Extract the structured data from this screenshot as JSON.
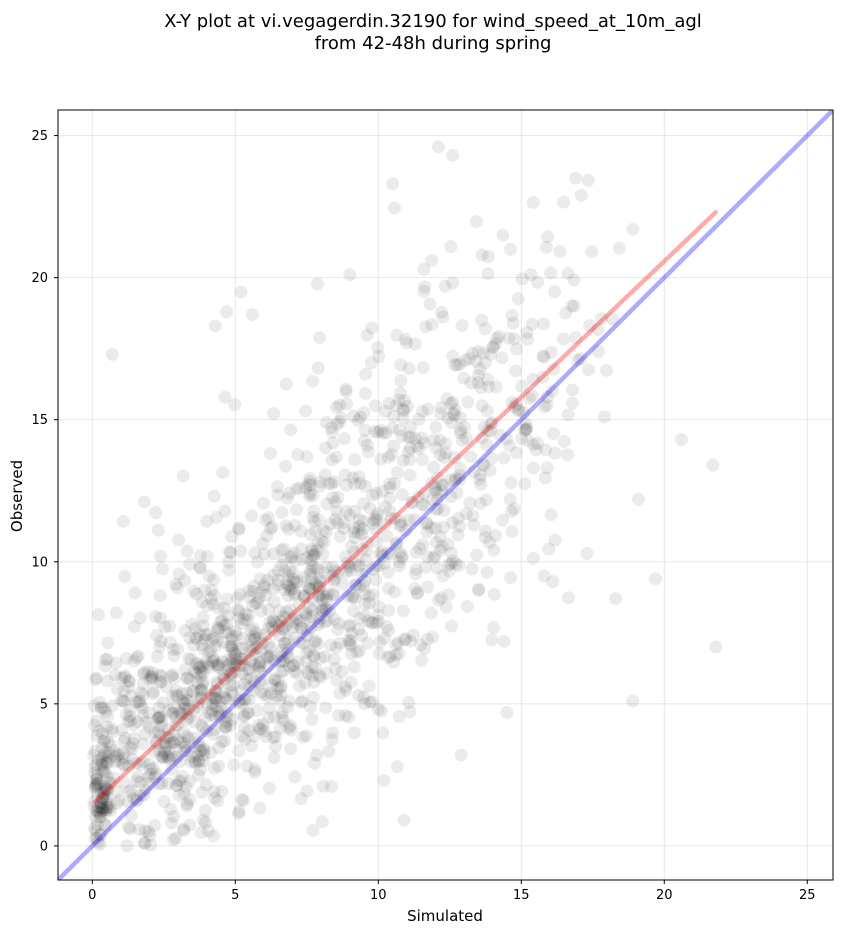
{
  "chart_data": {
    "type": "scatter",
    "title_lines": [
      "X-Y plot at vi.vegagerdin.32190 for wind_speed_at_10m_agl",
      "from 42-48h during spring"
    ],
    "xlabel": "Simulated",
    "ylabel": "Observed",
    "xlim": [
      -1.2,
      25.9
    ],
    "ylim": [
      -1.2,
      25.9
    ],
    "xticks": [
      0,
      5,
      10,
      15,
      20,
      25
    ],
    "yticks": [
      0,
      5,
      10,
      15,
      20,
      25
    ],
    "grid": true,
    "point_color": "#000000",
    "point_opacity": 0.08,
    "sample_points": {
      "x": [
        0.7,
        4.3,
        4.7,
        5.2,
        5.6,
        9.0,
        12.1,
        12.6,
        10.5,
        11.6,
        16.9,
        17.1,
        18.9,
        20.6,
        21.7,
        21.8,
        18.9,
        19.7,
        18.3,
        10.2,
        10.9,
        14.5,
        12.9,
        15.8,
        14.4,
        16.1,
        17.7,
        19.1
      ],
      "y": [
        17.3,
        18.3,
        18.8,
        19.5,
        18.7,
        20.1,
        24.6,
        24.3,
        23.3,
        20.3,
        23.5,
        22.9,
        21.7,
        14.3,
        13.4,
        7.0,
        5.1,
        9.4,
        8.7,
        2.3,
        0.9,
        4.7,
        3.2,
        9.5,
        7.2,
        9.3,
        17.4,
        12.2
      ]
    },
    "cloud_center_x": [
      0.0,
      2.0,
      4.0,
      6.0,
      8.0,
      10.0,
      12.0,
      14.0,
      16.0
    ],
    "cloud_center_y": [
      1.8,
      3.7,
      5.4,
      7.2,
      9.1,
      11.2,
      13.4,
      15.6,
      17.4
    ],
    "cloud_spread_x": [
      0.3,
      1.6,
      2.2,
      2.5,
      2.4,
      2.3,
      2.0,
      1.6,
      1.2
    ],
    "cloud_spread_y": [
      0.6,
      1.7,
      2.4,
      2.7,
      2.9,
      3.2,
      3.3,
      3.2,
      3.0
    ],
    "cloud_count": [
      40,
      200,
      290,
      290,
      230,
      190,
      140,
      90,
      45
    ],
    "series": [
      {
        "name": "",
        "type": "line",
        "x": [
          -1.2,
          25.9
        ],
        "y": [
          -1.2,
          25.9
        ],
        "color": "#0000ff",
        "opacity": 0.33
      },
      {
        "name": "",
        "type": "line",
        "x": [
          0.1,
          21.8
        ],
        "y": [
          1.55,
          22.3
        ],
        "color": "#ff0000",
        "opacity": 0.33
      }
    ]
  }
}
